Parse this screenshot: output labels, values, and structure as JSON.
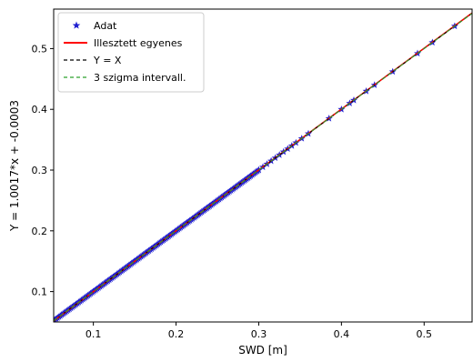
{
  "chart_data": {
    "type": "scatter",
    "xlabel": "SWD [m]",
    "ylabel": "Y = 1.0017*x + -0.0003",
    "xlim": [
      0.052,
      0.558
    ],
    "ylim": [
      0.05,
      0.565
    ],
    "grid": false,
    "legend_position": "top-left",
    "x_ticks": [
      0.1,
      0.2,
      0.3,
      0.4,
      0.5
    ],
    "x_tick_labels": [
      "0.1",
      "0.2",
      "0.3",
      "0.4",
      "0.5"
    ],
    "y_ticks": [
      0.1,
      0.2,
      0.3,
      0.4,
      0.5
    ],
    "y_tick_labels": [
      "0.1",
      "0.2",
      "0.3",
      "0.4",
      "0.5"
    ],
    "legend": [
      {
        "label": "Adat",
        "style": "star-marker",
        "color": "#1f1fd0"
      },
      {
        "label": "Illesztett egyenes",
        "style": "solid-line",
        "color": "#ff0000"
      },
      {
        "label": "Y = X",
        "style": "dashed-line",
        "color": "#000000"
      },
      {
        "label": "3 szigma intervall.",
        "style": "dashed-line",
        "color": "#2ca02c"
      }
    ],
    "series": [
      {
        "name": "Adat",
        "kind": "scatter",
        "marker": "star",
        "color": "#1f1fd0",
        "dense_range": [
          0.052,
          0.3
        ],
        "x": [
          0.3,
          0.305,
          0.31,
          0.315,
          0.32,
          0.325,
          0.33,
          0.335,
          0.34,
          0.345,
          0.352,
          0.36,
          0.385,
          0.4,
          0.41,
          0.415,
          0.43,
          0.44,
          0.462,
          0.492,
          0.51,
          0.537
        ],
        "y": [
          0.3,
          0.305,
          0.31,
          0.315,
          0.32,
          0.325,
          0.33,
          0.335,
          0.34,
          0.345,
          0.352,
          0.36,
          0.385,
          0.4,
          0.41,
          0.415,
          0.43,
          0.44,
          0.462,
          0.492,
          0.51,
          0.537
        ]
      },
      {
        "name": "Illesztett egyenes",
        "kind": "line",
        "slope": 1.0017,
        "intercept": -0.0003,
        "color": "#ff0000"
      },
      {
        "name": "Y = X",
        "kind": "line",
        "slope": 1,
        "intercept": 0,
        "color": "#000000"
      },
      {
        "name": "3 szigma intervall.",
        "kind": "line",
        "slope": 1,
        "intercept": 0,
        "color": "#2ca02c"
      }
    ]
  }
}
